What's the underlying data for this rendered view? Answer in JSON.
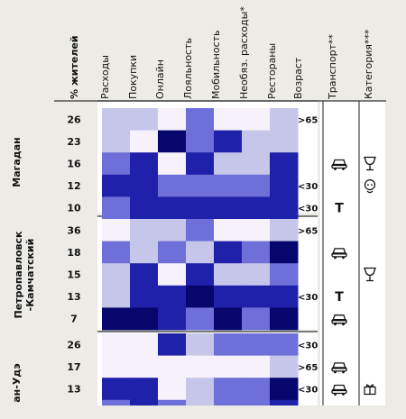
{
  "chart_data": {
    "type": "heatmap",
    "columns": [
      "% жителей",
      "Расходы",
      "Покупки",
      "Онлайн",
      "Лояльность",
      "Мобильность",
      "Необяз. расходы*",
      "Рестораны",
      "Возраст",
      "Транспорт**",
      "Категория***"
    ],
    "metrics": [
      "Расходы",
      "Покупки",
      "Онлайн",
      "Лояльность",
      "Мобильность",
      "Необяз. расходы*",
      "Рестораны"
    ],
    "scale": {
      "min": 0,
      "max": 4,
      "colors": [
        "#f6f1fb",
        "#c6c6ea",
        "#6e6fd8",
        "#1f21aa",
        "#06066c"
      ]
    },
    "groups": [
      {
        "name": "Магадан",
        "rows": [
          {
            "pct": "26",
            "levels": [
              1,
              1,
              0,
              2,
              0,
              0,
              1
            ],
            "age": ">65",
            "transport": "",
            "category": ""
          },
          {
            "pct": "23",
            "levels": [
              1,
              0,
              4,
              2,
              3,
              1,
              1
            ],
            "age": "",
            "transport": "",
            "category": ""
          },
          {
            "pct": "16",
            "levels": [
              2,
              3,
              0,
              3,
              1,
              1,
              3
            ],
            "age": "",
            "transport": "car",
            "category": "glass"
          },
          {
            "pct": "12",
            "levels": [
              3,
              3,
              2,
              2,
              2,
              2,
              3
            ],
            "age": "<30",
            "transport": "",
            "category": "baby"
          },
          {
            "pct": "10",
            "levels": [
              2,
              3,
              3,
              3,
              3,
              3,
              3
            ],
            "age": "<30",
            "transport": "taxi",
            "category": ""
          }
        ]
      },
      {
        "name": "Петропавловск -Камчатский",
        "rows": [
          {
            "pct": "36",
            "levels": [
              0,
              1,
              1,
              2,
              0,
              0,
              1
            ],
            "age": ">65",
            "transport": "",
            "category": ""
          },
          {
            "pct": "18",
            "levels": [
              2,
              1,
              2,
              1,
              3,
              2,
              4
            ],
            "age": "",
            "transport": "car",
            "category": ""
          },
          {
            "pct": "15",
            "levels": [
              1,
              3,
              0,
              3,
              1,
              1,
              2
            ],
            "age": "",
            "transport": "",
            "category": "glass"
          },
          {
            "pct": "13",
            "levels": [
              1,
              3,
              3,
              4,
              3,
              3,
              3
            ],
            "age": "<30",
            "transport": "taxi",
            "category": ""
          },
          {
            "pct": "7",
            "levels": [
              4,
              4,
              3,
              2,
              4,
              2,
              4
            ],
            "age": "",
            "transport": "car",
            "category": ""
          }
        ]
      },
      {
        "name": "ан-Удэ",
        "rows": [
          {
            "pct": "26",
            "levels": [
              0,
              0,
              3,
              1,
              2,
              2,
              2
            ],
            "age": "<30",
            "transport": "",
            "category": ""
          },
          {
            "pct": "17",
            "levels": [
              0,
              0,
              0,
              0,
              0,
              0,
              1
            ],
            "age": ">65",
            "transport": "car",
            "category": ""
          },
          {
            "pct": "13",
            "levels": [
              3,
              3,
              0,
              1,
              2,
              2,
              4
            ],
            "age": "<30",
            "transport": "car",
            "category": "gift"
          },
          {
            "pct": "",
            "levels": [
              2,
              3,
              2,
              1,
              2,
              2,
              3
            ],
            "age": "",
            "transport": "",
            "category": ""
          }
        ]
      }
    ]
  }
}
